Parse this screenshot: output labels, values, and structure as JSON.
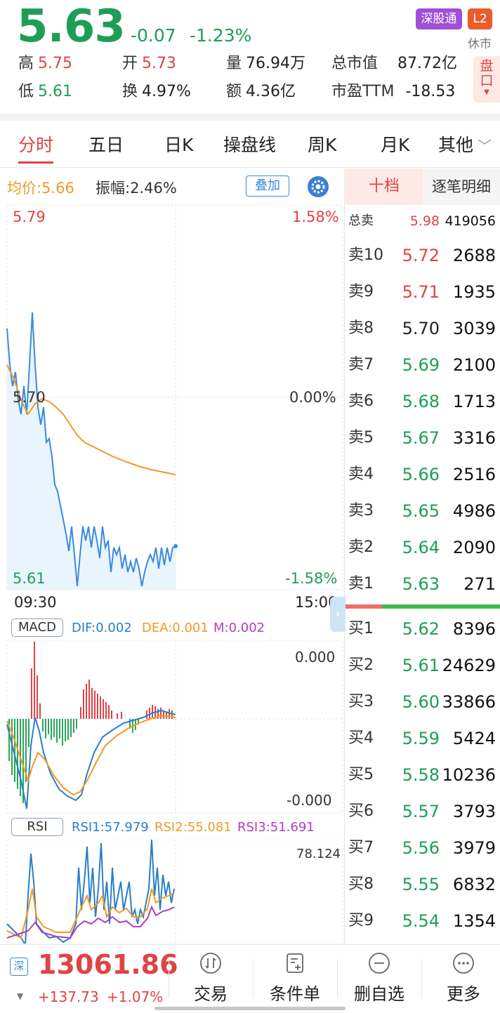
{
  "quote": {
    "price": "5.63",
    "change": "-0.07",
    "change_pct": "-1.23%",
    "badge_sgt": "深股通",
    "badge_l2": "L2",
    "market_status": "休市",
    "pankou": [
      "盘",
      "口"
    ],
    "stats": [
      {
        "k": "高",
        "v": "5.75"
      },
      {
        "k": "开",
        "v": "5.73"
      },
      {
        "k": "量",
        "v": "76.94万"
      },
      {
        "k": "总市值",
        "v": "87.72亿"
      },
      {
        "k": "低",
        "v": "5.61"
      },
      {
        "k": "换",
        "v": "4.97%"
      },
      {
        "k": "额",
        "v": "4.36亿"
      },
      {
        "k": "市盈TTM",
        "v": "-18.53"
      }
    ]
  },
  "tabs": [
    "分时",
    "五日",
    "日K",
    "操盘线",
    "周K",
    "月K",
    "其他"
  ],
  "chart_info": {
    "avg": "均价:5.66",
    "amp": "振幅:2.46%",
    "overlay": "叠加",
    "price_high": "5.79",
    "price_mid": "5.70",
    "price_low": "5.61",
    "pct_high": "1.58%",
    "pct_mid": "0.00%",
    "pct_low": "-1.58%",
    "time_start": "09:30",
    "time_end": "15:00"
  },
  "macd": {
    "name": "MACD",
    "dif": "DIF:0.002",
    "dea": "DEA:0.001",
    "m": "M:0.002",
    "top": "0.000",
    "bottom": "-0.000"
  },
  "rsi": {
    "name": "RSI",
    "rsi1": "RSI1:57.979",
    "rsi2": "RSI2:55.081",
    "rsi3": "RSI3:51.691",
    "top": "78.124"
  },
  "orderbook": {
    "tab1": "十档",
    "tab2": "逐笔明细",
    "total": {
      "label": "总卖",
      "price": "5.98",
      "vol": "419056"
    },
    "sell": [
      {
        "label": "卖10",
        "price": "5.72",
        "vol": "2688",
        "color": "#e04345"
      },
      {
        "label": "卖9",
        "price": "5.71",
        "vol": "1935",
        "color": "#e04345"
      },
      {
        "label": "卖8",
        "price": "5.70",
        "vol": "3039",
        "color": "#222222"
      },
      {
        "label": "卖7",
        "price": "5.69",
        "vol": "2100",
        "color": "#1e9e55"
      },
      {
        "label": "卖6",
        "price": "5.68",
        "vol": "1713",
        "color": "#1e9e55"
      },
      {
        "label": "卖5",
        "price": "5.67",
        "vol": "3316",
        "color": "#1e9e55"
      },
      {
        "label": "卖4",
        "price": "5.66",
        "vol": "2516",
        "color": "#1e9e55"
      },
      {
        "label": "卖3",
        "price": "5.65",
        "vol": "4986",
        "color": "#1e9e55"
      },
      {
        "label": "卖2",
        "price": "5.64",
        "vol": "2090",
        "color": "#1e9e55"
      },
      {
        "label": "卖1",
        "price": "5.63",
        "vol": "271",
        "color": "#1e9e55"
      }
    ],
    "buy": [
      {
        "label": "买1",
        "price": "5.62",
        "vol": "8396",
        "color": "#1e9e55"
      },
      {
        "label": "买2",
        "price": "5.61",
        "vol": "24629",
        "color": "#1e9e55"
      },
      {
        "label": "买3",
        "price": "5.60",
        "vol": "33866",
        "color": "#1e9e55"
      },
      {
        "label": "买4",
        "price": "5.59",
        "vol": "5424",
        "color": "#1e9e55"
      },
      {
        "label": "买5",
        "price": "5.58",
        "vol": "10236",
        "color": "#1e9e55"
      },
      {
        "label": "买6",
        "price": "5.57",
        "vol": "3793",
        "color": "#1e9e55"
      },
      {
        "label": "买7",
        "price": "5.56",
        "vol": "3979",
        "color": "#1e9e55"
      },
      {
        "label": "买8",
        "price": "5.55",
        "vol": "6832",
        "color": "#1e9e55"
      },
      {
        "label": "买9",
        "price": "5.54",
        "vol": "1354",
        "color": "#1e9e55"
      }
    ]
  },
  "bottom": {
    "market_icon": "深",
    "index_value": "13061.86",
    "index_change": "+137.73",
    "index_pct": "+1.07%",
    "buttons": [
      {
        "label": "交易",
        "icon": "trade-icon"
      },
      {
        "label": "条件单",
        "icon": "condition-order-icon"
      },
      {
        "label": "删自选",
        "icon": "remove-watchlist-icon"
      },
      {
        "label": "更多",
        "icon": "more-icon"
      }
    ]
  },
  "colors": {
    "up": "#e04345",
    "down": "#1e9e55",
    "avg": "#f09a26",
    "price_line": "#3a8ae0"
  }
}
